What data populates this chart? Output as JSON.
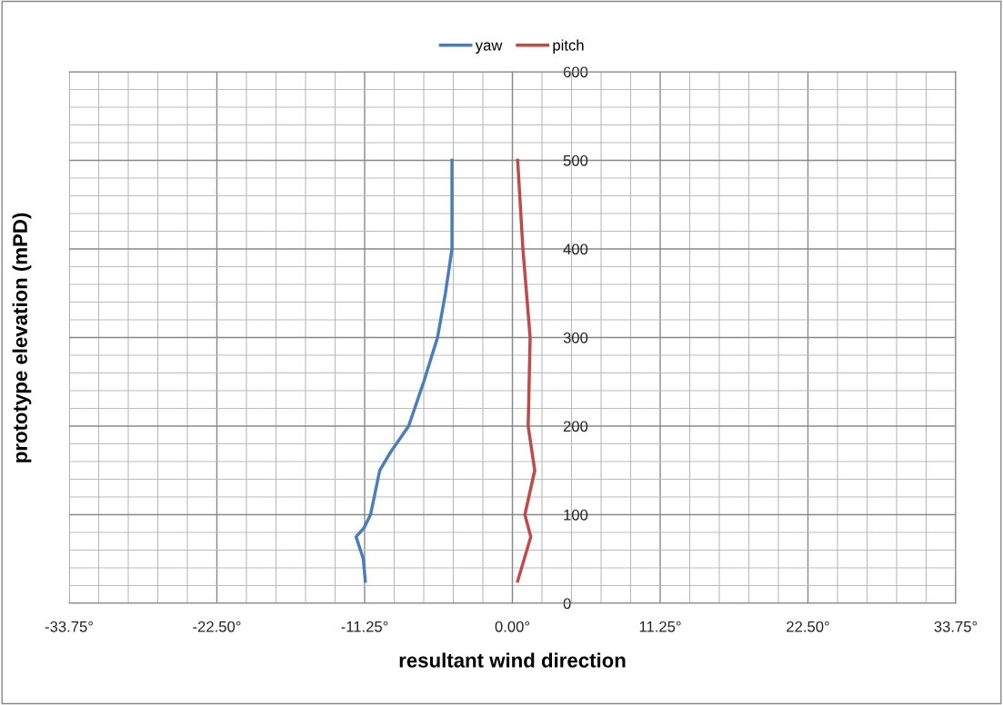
{
  "chart_data": {
    "type": "line",
    "xlabel": "resultant wind direction",
    "ylabel": "prototype elevation (mPD)",
    "series": [
      {
        "name": "yaw",
        "color": "#4a7ebb",
        "x": [
          -11.2,
          -11.35,
          -11.9,
          -11.3,
          -10.8,
          -10.1,
          -9.3,
          -7.9,
          -6.75,
          -5.7,
          -5.1,
          -4.6,
          -4.6
        ],
        "values": [
          25,
          50,
          75,
          85,
          100,
          150,
          170,
          200,
          250,
          300,
          350,
          400,
          500
        ]
      },
      {
        "name": "pitch",
        "color": "#be4b48",
        "x": [
          0.4,
          1.4,
          0.95,
          1.7,
          1.2,
          1.35,
          0.8,
          0.4
        ],
        "values": [
          25,
          75,
          100,
          150,
          200,
          300,
          400,
          500
        ]
      }
    ],
    "xlim": [
      -33.75,
      33.75
    ],
    "xticks": [
      {
        "value": -33.75,
        "label": "-33.75°"
      },
      {
        "value": -22.5,
        "label": "-22.50°"
      },
      {
        "value": -11.25,
        "label": "-11.25°"
      },
      {
        "value": 0,
        "label": "0.00°"
      },
      {
        "value": 11.25,
        "label": "11.25°"
      },
      {
        "value": 22.5,
        "label": "22.50°"
      },
      {
        "value": 33.75,
        "label": "33.75°"
      }
    ],
    "ylim": [
      0,
      600
    ],
    "yticks": [
      0,
      100,
      200,
      300,
      400,
      500,
      600
    ],
    "grid": true,
    "legend": "top",
    "marker": "none",
    "line_style": "solid"
  }
}
